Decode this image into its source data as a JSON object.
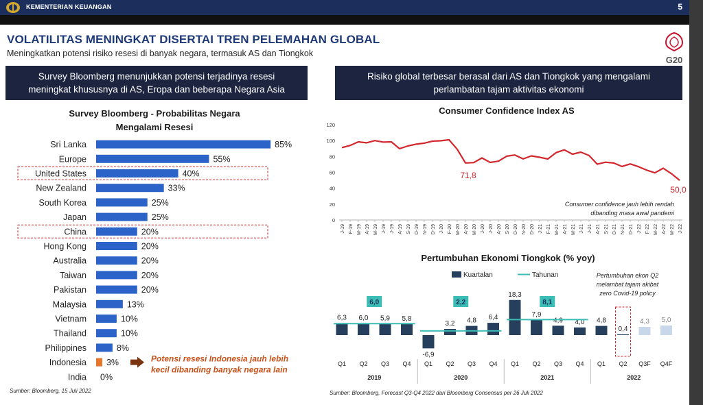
{
  "header": {
    "ministry": "KEMENTERIAN KEUANGAN",
    "page_number": "5"
  },
  "title": "VOLATILITAS MENINGKAT DISERTAI TREN PELEMAHAN GLOBAL",
  "subtitle": "Meningkatkan potensi risiko resesi di banyak negara, termasuk AS dan Tiongkok",
  "logo_text": "G20",
  "left_banner": {
    "line1": "Survey Bloomberg menunjukkan potensi terjadinya resesi",
    "line2": "meningkat khususnya di AS, Eropa dan beberapa Negara Asia"
  },
  "right_banner": {
    "line1": "Risiko global terbesar berasal dari AS dan Tiongkok yang mengalami",
    "line2": "perlambatan tajam aktivitas ekonomi"
  },
  "source_left": "Sumber: Bloomberg, 15 Juli 2022",
  "source_right": "Sumber: Bloomberg, Forecast Q3-Q4 2022 dari Bloomberg Consensus per 26 Juli 2022",
  "colors": {
    "navy": "#1f3a78",
    "bar_blue": "#2b63c8",
    "highlight_orange": "#e5762a",
    "dark_bar": "#253f5c",
    "teal": "#3bbcb4",
    "red_text": "#d3272d",
    "forecast_bar": "#c9d7ea"
  },
  "chart_data": [
    {
      "type": "bar",
      "orientation": "horizontal",
      "title_line1": "Survey Bloomberg - Probabilitas Negara",
      "title_line2": "Mengalami Resesi",
      "categories": [
        "Sri Lanka",
        "Europe",
        "United States",
        "New Zealand",
        "South Korea",
        "Japan",
        "China",
        "Hong Kong",
        "Australia",
        "Taiwan",
        "Pakistan",
        "Malaysia",
        "Vietnam",
        "Thailand",
        "Philippines",
        "Indonesia",
        "India"
      ],
      "values": [
        85,
        55,
        40,
        33,
        25,
        25,
        20,
        20,
        20,
        20,
        20,
        13,
        10,
        10,
        8,
        3,
        0
      ],
      "value_labels": [
        "85%",
        "55%",
        "40%",
        "33%",
        "25%",
        "25%",
        "20%",
        "20%",
        "20%",
        "20%",
        "20%",
        "13%",
        "10%",
        "10%",
        "8%",
        "3%",
        "0%"
      ],
      "highlighted_boxes": [
        "United States",
        "China"
      ],
      "highlighted_bar": "Indonesia",
      "annotation_line1": "Potensi resesi Indonesia jauh lebih",
      "annotation_line2": "kecil dibanding banyak negara lain"
    },
    {
      "type": "line",
      "title": "Consumer Confidence Index AS",
      "ylim": [
        0,
        120
      ],
      "yticks": [
        "0",
        "20",
        "40",
        "60",
        "80",
        "100",
        "120"
      ],
      "x": [
        "J-19",
        "F-19",
        "M-19",
        "A-19",
        "M-19",
        "J-19",
        "J-19",
        "A-19",
        "S-19",
        "O-19",
        "N-19",
        "D-19",
        "J-20",
        "F-20",
        "M-20",
        "A-20",
        "M-20",
        "J-20",
        "J-20",
        "A-20",
        "S-20",
        "O-20",
        "N-20",
        "D-20",
        "J-21",
        "F-21",
        "M-21",
        "A-21",
        "M-21",
        "J-21",
        "J-21",
        "A-21",
        "S-21",
        "O-21",
        "N-21",
        "D-21",
        "J-22",
        "F-22",
        "M-22",
        "A-22",
        "M-22",
        "J-22"
      ],
      "y": [
        91.2,
        93.8,
        98.4,
        97.2,
        100.0,
        98.2,
        98.4,
        89.8,
        93.2,
        95.5,
        96.8,
        99.3,
        99.8,
        101.0,
        89.1,
        71.8,
        72.3,
        78.1,
        72.5,
        74.1,
        80.4,
        81.8,
        76.9,
        80.7,
        79.0,
        76.8,
        84.9,
        88.3,
        82.9,
        85.5,
        81.2,
        70.3,
        72.8,
        71.7,
        67.4,
        70.6,
        67.2,
        62.8,
        59.4,
        65.2,
        58.4,
        50.0
      ],
      "point_labels": {
        "low_2020": "71,8",
        "latest": "50,0"
      },
      "annotation_line1": "Consumer confidence jauh lebih rendah",
      "annotation_line2": "dibanding masa awal pandemi"
    },
    {
      "type": "bar",
      "title": "Pertumbuhan Ekonomi Tiongkok (% yoy)",
      "legend": [
        "Kuartalan",
        "Tahunan"
      ],
      "categories": [
        "Q1",
        "Q2",
        "Q3",
        "Q4",
        "Q1",
        "Q2",
        "Q3",
        "Q4",
        "Q1",
        "Q2",
        "Q3",
        "Q4",
        "Q1",
        "Q2",
        "Q3F",
        "Q4F"
      ],
      "years": [
        "2019",
        "2020",
        "2021",
        "2022"
      ],
      "quarterly": [
        6.3,
        6.0,
        5.9,
        5.8,
        -6.9,
        3.2,
        4.8,
        6.4,
        18.3,
        7.9,
        4.9,
        4.0,
        4.8,
        0.4,
        4.3,
        5.0
      ],
      "quarterly_labels": [
        "6,3",
        "6,0",
        "5,9",
        "5,8",
        "-6,9",
        "3,2",
        "4,8",
        "6,4",
        "18,3",
        "7,9",
        "4,9",
        "4,0",
        "4,8",
        "0,4",
        "4,3",
        "5,0"
      ],
      "forecast": [
        "Q3F",
        "Q4F"
      ],
      "annual": [
        6.0,
        2.2,
        8.1
      ],
      "annual_labels": [
        "6,0",
        "2,2",
        "8,1"
      ],
      "annotation_line1": "Pertumbuhan ekon Q2",
      "annotation_line2": "melambat tajam akibat",
      "annotation_line3": "zero Covid-19 policy"
    }
  ]
}
